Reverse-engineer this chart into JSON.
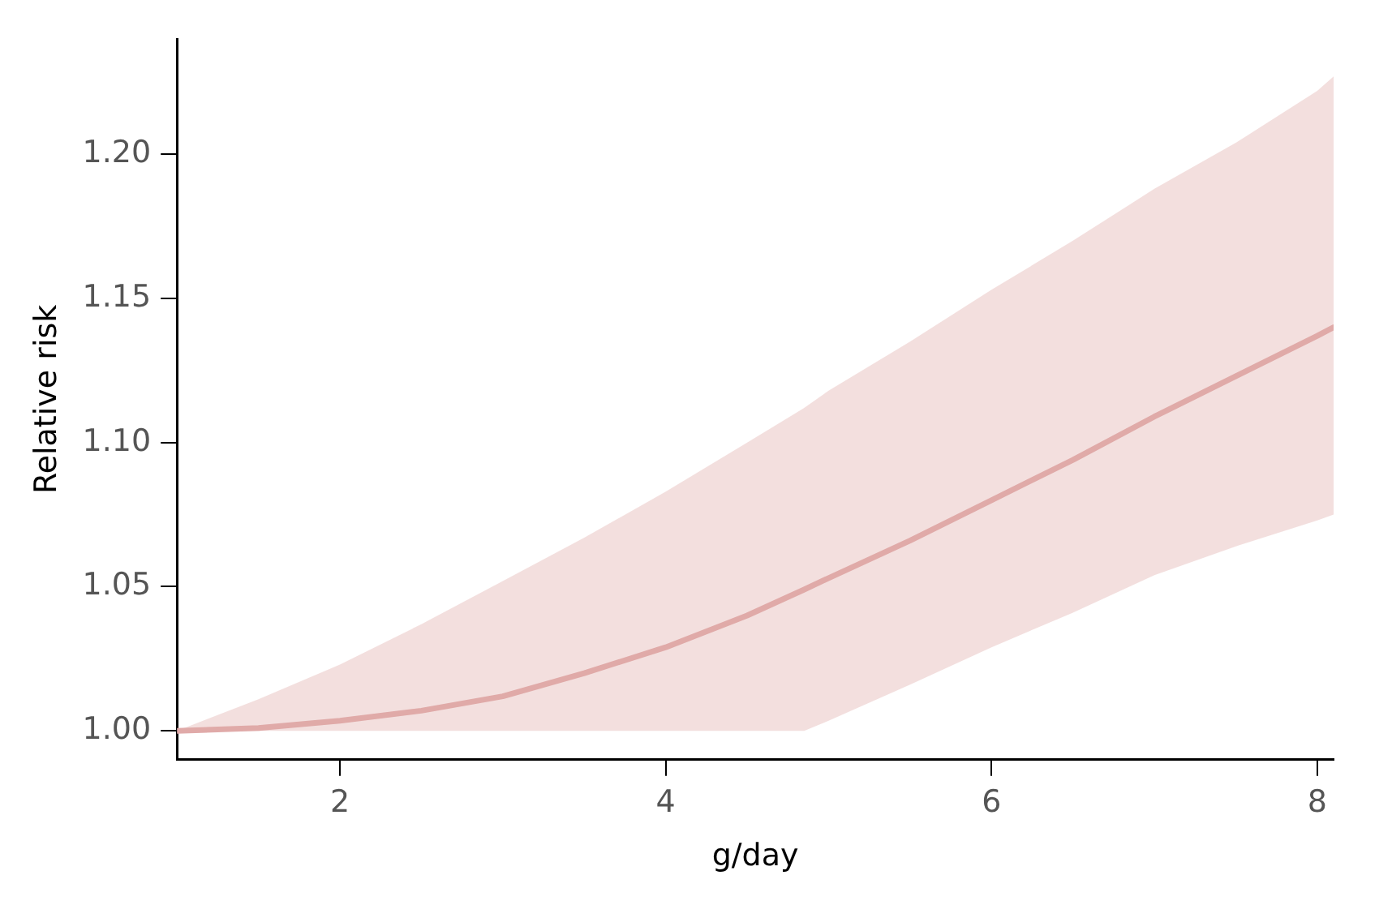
{
  "chart_data": {
    "type": "line",
    "xlabel": "g/day",
    "ylabel": "Relative risk",
    "x": [
      1,
      1.5,
      2,
      2.5,
      3,
      3.5,
      4,
      4.5,
      4.85,
      5,
      5.5,
      6,
      6.5,
      7,
      7.5,
      8,
      8.1
    ],
    "series": [
      {
        "color": "#e0aaa9",
        "values": [
          1.0,
          1.001,
          1.0035,
          1.007,
          1.012,
          1.02,
          1.029,
          1.04,
          1.049,
          1.053,
          1.066,
          1.08,
          1.094,
          1.109,
          1.123,
          1.137,
          1.14
        ],
        "lower": [
          1.0,
          1.0,
          1.0,
          1.0,
          1.0,
          1.0,
          1.0,
          1.0,
          1.0,
          1.0035,
          1.016,
          1.029,
          1.041,
          1.054,
          1.064,
          1.073,
          1.075
        ],
        "upper": [
          1.0,
          1.011,
          1.023,
          1.037,
          1.052,
          1.067,
          1.083,
          1.1,
          1.112,
          1.118,
          1.135,
          1.153,
          1.17,
          1.188,
          1.204,
          1.222,
          1.227
        ]
      }
    ],
    "xlim": [
      1,
      8.1
    ],
    "xticks": [
      2,
      4,
      6,
      8
    ],
    "ylim": [
      0.99,
      1.24
    ],
    "yticks": [
      {
        "value": 1.0,
        "label": "1.00"
      },
      {
        "value": 1.05,
        "label": "1.05"
      },
      {
        "value": 1.1,
        "label": "1.10"
      },
      {
        "value": 1.15,
        "label": "1.15"
      },
      {
        "value": 1.2,
        "label": "1.20"
      }
    ],
    "grid": false,
    "legend": false,
    "marker": "none",
    "line_style": "solid"
  }
}
